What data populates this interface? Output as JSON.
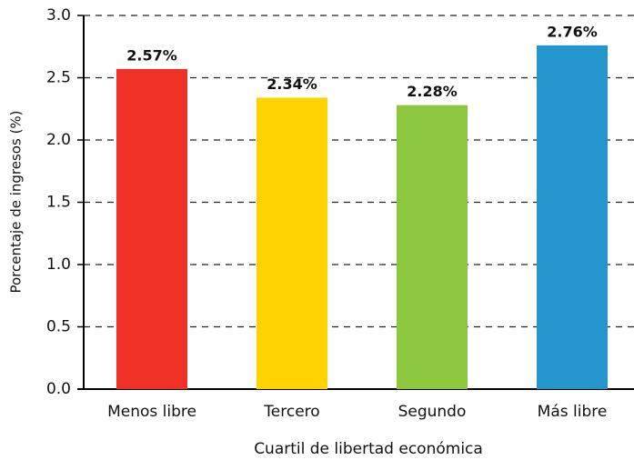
{
  "chart_data": {
    "type": "bar",
    "xlabel": "Cuartil de libertad económica",
    "ylabel": "Porcentaje de ingresos (%)",
    "categories": [
      "Menos libre",
      "Tercero",
      "Segundo",
      "Más libre"
    ],
    "values": [
      2.57,
      2.34,
      2.28,
      2.76
    ],
    "value_labels": [
      "2.57%",
      "2.34%",
      "2.28%",
      "2.76%"
    ],
    "colors": [
      "#ee3124",
      "#ffd200",
      "#8dc63f",
      "#2596cd"
    ],
    "ylim": [
      0,
      3
    ],
    "yticks": [
      {
        "value": 0,
        "label": "0.0"
      },
      0.5,
      {
        "value": 1,
        "label": "1.0"
      },
      1.5,
      {
        "value": 2,
        "label": "2.0"
      },
      2.5,
      {
        "value": 3,
        "label": "3.0"
      }
    ],
    "grid": true
  }
}
